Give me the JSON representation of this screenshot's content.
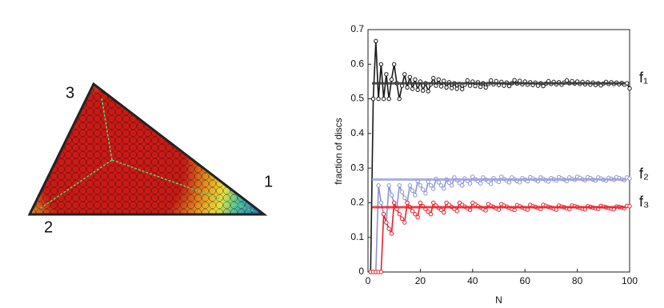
{
  "diagram": {
    "vertex_labels": [
      "1",
      "2",
      "3"
    ]
  },
  "chart_data": {
    "type": "line",
    "xlabel": "N",
    "ylabel": "fraction of discs",
    "x": [
      1,
      2,
      3,
      4,
      5,
      6,
      7,
      8,
      9,
      10,
      11,
      12,
      13,
      14,
      15,
      16,
      17,
      18,
      19,
      20,
      21,
      22,
      23,
      24,
      25,
      26,
      27,
      28,
      29,
      30,
      31,
      32,
      33,
      34,
      35,
      36,
      37,
      38,
      39,
      40,
      41,
      42,
      43,
      44,
      45,
      46,
      47,
      48,
      49,
      50,
      51,
      52,
      53,
      54,
      55,
      56,
      57,
      58,
      59,
      60,
      61,
      62,
      63,
      64,
      65,
      66,
      67,
      68,
      69,
      70,
      71,
      72,
      73,
      74,
      75,
      76,
      77,
      78,
      79,
      80,
      81,
      82,
      83,
      84,
      85,
      86,
      87,
      88,
      89,
      90,
      91,
      92,
      93,
      94,
      95,
      96,
      97,
      98,
      99,
      100
    ],
    "series": [
      {
        "name": "f₁",
        "color": "#1a1a1a",
        "values": [
          0,
          0.5,
          0.667,
          0.5,
          0.6,
          0.5,
          0.571,
          0.5,
          0.556,
          0.6,
          0.545,
          0.5,
          0.538,
          0.571,
          0.533,
          0.563,
          0.529,
          0.556,
          0.526,
          0.55,
          0.524,
          0.545,
          0.522,
          0.542,
          0.56,
          0.538,
          0.556,
          0.536,
          0.552,
          0.533,
          0.548,
          0.531,
          0.545,
          0.529,
          0.543,
          0.528,
          0.541,
          0.553,
          0.538,
          0.55,
          0.537,
          0.548,
          0.535,
          0.545,
          0.533,
          0.543,
          0.553,
          0.542,
          0.551,
          0.54,
          0.549,
          0.538,
          0.547,
          0.537,
          0.545,
          0.554,
          0.544,
          0.552,
          0.542,
          0.55,
          0.541,
          0.548,
          0.54,
          0.547,
          0.538,
          0.545,
          0.537,
          0.544,
          0.551,
          0.543,
          0.549,
          0.542,
          0.548,
          0.541,
          0.547,
          0.553,
          0.545,
          0.551,
          0.544,
          0.55,
          0.543,
          0.549,
          0.542,
          0.548,
          0.541,
          0.547,
          0.54,
          0.545,
          0.539,
          0.544,
          0.549,
          0.543,
          0.548,
          0.543,
          0.547,
          0.542,
          0.546,
          0.541,
          0.545,
          0.53
        ]
      },
      {
        "name": "f₂",
        "color": "#8c94d4",
        "values": [
          0,
          0,
          0,
          0.25,
          0.2,
          0.167,
          0.143,
          0.25,
          0.222,
          0.2,
          0.182,
          0.25,
          0.231,
          0.214,
          0.2,
          0.25,
          0.235,
          0.222,
          0.263,
          0.25,
          0.238,
          0.227,
          0.261,
          0.25,
          0.24,
          0.269,
          0.259,
          0.25,
          0.241,
          0.267,
          0.258,
          0.25,
          0.273,
          0.265,
          0.257,
          0.25,
          0.27,
          0.263,
          0.256,
          0.275,
          0.268,
          0.262,
          0.256,
          0.273,
          0.267,
          0.261,
          0.255,
          0.271,
          0.265,
          0.26,
          0.275,
          0.269,
          0.264,
          0.259,
          0.273,
          0.268,
          0.263,
          0.259,
          0.271,
          0.267,
          0.262,
          0.274,
          0.27,
          0.266,
          0.262,
          0.273,
          0.269,
          0.265,
          0.261,
          0.271,
          0.268,
          0.264,
          0.274,
          0.27,
          0.267,
          0.263,
          0.273,
          0.269,
          0.266,
          0.275,
          0.272,
          0.268,
          0.265,
          0.274,
          0.271,
          0.267,
          0.264,
          0.273,
          0.27,
          0.267,
          0.264,
          0.272,
          0.269,
          0.266,
          0.274,
          0.271,
          0.268,
          0.265,
          0.273,
          0.27
        ]
      },
      {
        "name": "f₃",
        "color": "#e8202a",
        "values": [
          0,
          0,
          0,
          0,
          0,
          0.167,
          0.143,
          0.125,
          0.111,
          0.2,
          0.182,
          0.167,
          0.154,
          0.143,
          0.2,
          0.188,
          0.176,
          0.167,
          0.158,
          0.2,
          0.19,
          0.182,
          0.174,
          0.167,
          0.2,
          0.192,
          0.185,
          0.179,
          0.172,
          0.2,
          0.194,
          0.188,
          0.182,
          0.176,
          0.2,
          0.194,
          0.189,
          0.184,
          0.179,
          0.2,
          0.195,
          0.19,
          0.186,
          0.182,
          0.178,
          0.196,
          0.191,
          0.188,
          0.184,
          0.18,
          0.196,
          0.192,
          0.189,
          0.185,
          0.182,
          0.179,
          0.193,
          0.19,
          0.186,
          0.183,
          0.18,
          0.194,
          0.19,
          0.188,
          0.185,
          0.182,
          0.194,
          0.191,
          0.188,
          0.186,
          0.183,
          0.18,
          0.192,
          0.189,
          0.187,
          0.184,
          0.182,
          0.192,
          0.19,
          0.188,
          0.185,
          0.183,
          0.181,
          0.19,
          0.188,
          0.186,
          0.184,
          0.182,
          0.191,
          0.189,
          0.187,
          0.185,
          0.183,
          0.181,
          0.189,
          0.188,
          0.186,
          0.184,
          0.191,
          0.19
        ]
      }
    ],
    "hlines": [
      {
        "value": 0.545,
        "color": "#333333"
      },
      {
        "value": 0.267,
        "color": "#9aa0d8"
      },
      {
        "value": 0.187,
        "color": "#e8202a"
      }
    ],
    "xlim": [
      0,
      100
    ],
    "xticks": [
      0,
      20,
      40,
      60,
      80,
      100
    ],
    "ylim": [
      0,
      0.7
    ],
    "yticks": [
      0,
      0.1,
      0.2,
      0.3,
      0.4,
      0.5,
      0.6,
      0.7
    ]
  }
}
